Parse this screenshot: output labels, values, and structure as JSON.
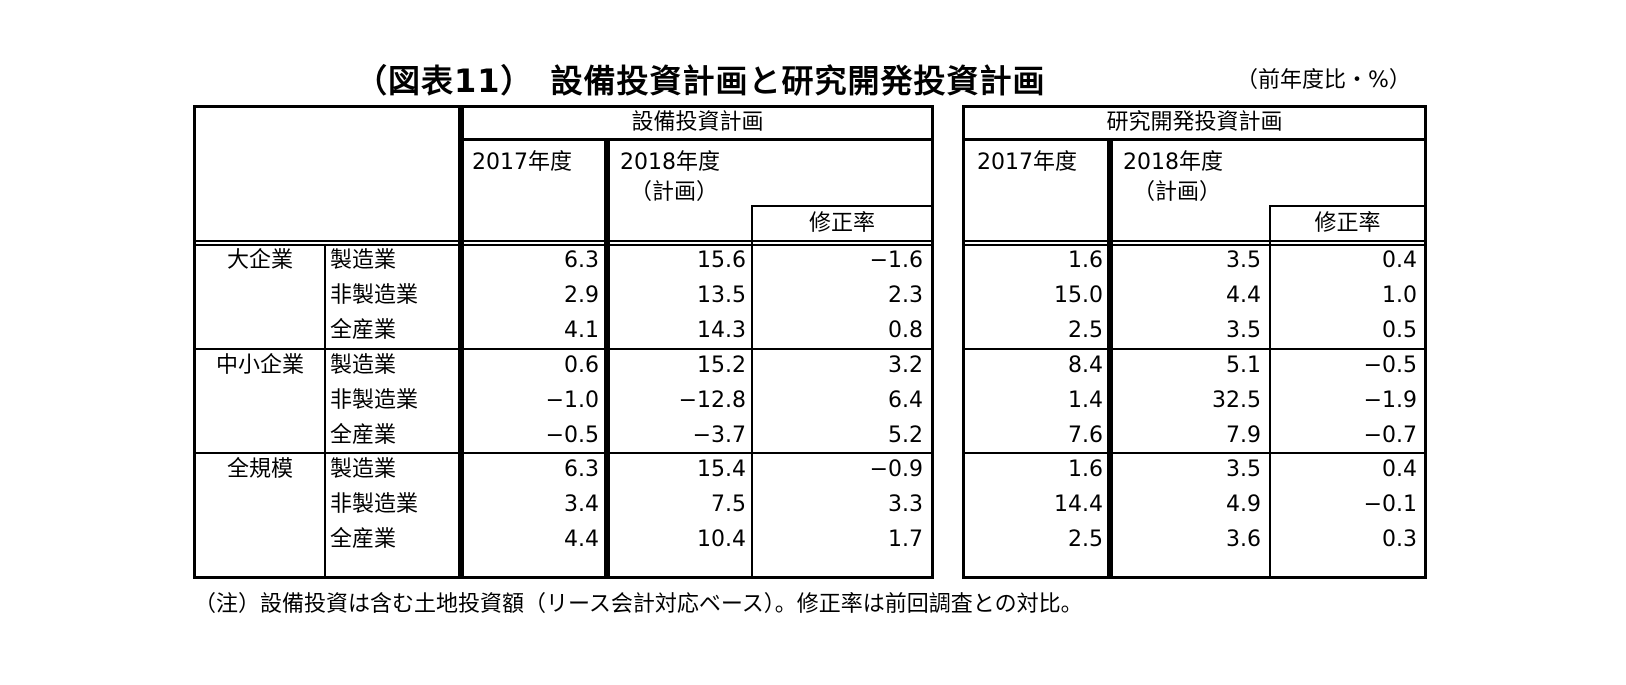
{
  "title": "（図表11）　設備投資計画と研究開発投資計画",
  "unit": "（前年度比・%）",
  "note": "（注）設備投資は含む土地投資額（リース会計対応ベース）。修正率は前回調査との対比。",
  "capex": {
    "header": "設備投資計画",
    "col_2017": "2017年度",
    "col_2018": "2018年度",
    "col_2018_sub": "（計画）",
    "col_revision": "修正率"
  },
  "rnd": {
    "header": "研究開発投資計画",
    "col_2017": "2017年度",
    "col_2018": "2018年度",
    "col_2018_sub": "（計画）",
    "col_revision": "修正率"
  },
  "groups": [
    {
      "label": "大企業",
      "rows": [
        {
          "industry": "製造業",
          "capex": [
            "6.3",
            "15.6",
            "−1.6"
          ],
          "rnd": [
            "1.6",
            "3.5",
            "0.4"
          ]
        },
        {
          "industry": "非製造業",
          "capex": [
            "2.9",
            "13.5",
            "2.3"
          ],
          "rnd": [
            "15.0",
            "4.4",
            "1.0"
          ]
        },
        {
          "industry": "全産業",
          "capex": [
            "4.1",
            "14.3",
            "0.8"
          ],
          "rnd": [
            "2.5",
            "3.5",
            "0.5"
          ]
        }
      ]
    },
    {
      "label": "中小企業",
      "rows": [
        {
          "industry": "製造業",
          "capex": [
            "0.6",
            "15.2",
            "3.2"
          ],
          "rnd": [
            "8.4",
            "5.1",
            "−0.5"
          ]
        },
        {
          "industry": "非製造業",
          "capex": [
            "−1.0",
            "−12.8",
            "6.4"
          ],
          "rnd": [
            "1.4",
            "32.5",
            "−1.9"
          ]
        },
        {
          "industry": "全産業",
          "capex": [
            "−0.5",
            "−3.7",
            "5.2"
          ],
          "rnd": [
            "7.6",
            "7.9",
            "−0.7"
          ]
        }
      ]
    },
    {
      "label": "全規模",
      "rows": [
        {
          "industry": "製造業",
          "capex": [
            "6.3",
            "15.4",
            "−0.9"
          ],
          "rnd": [
            "1.6",
            "3.5",
            "0.4"
          ]
        },
        {
          "industry": "非製造業",
          "capex": [
            "3.4",
            "7.5",
            "3.3"
          ],
          "rnd": [
            "14.4",
            "4.9",
            "−0.1"
          ]
        },
        {
          "industry": "全産業",
          "capex": [
            "4.4",
            "10.4",
            "1.7"
          ],
          "rnd": [
            "2.5",
            "3.6",
            "0.3"
          ]
        }
      ]
    }
  ]
}
